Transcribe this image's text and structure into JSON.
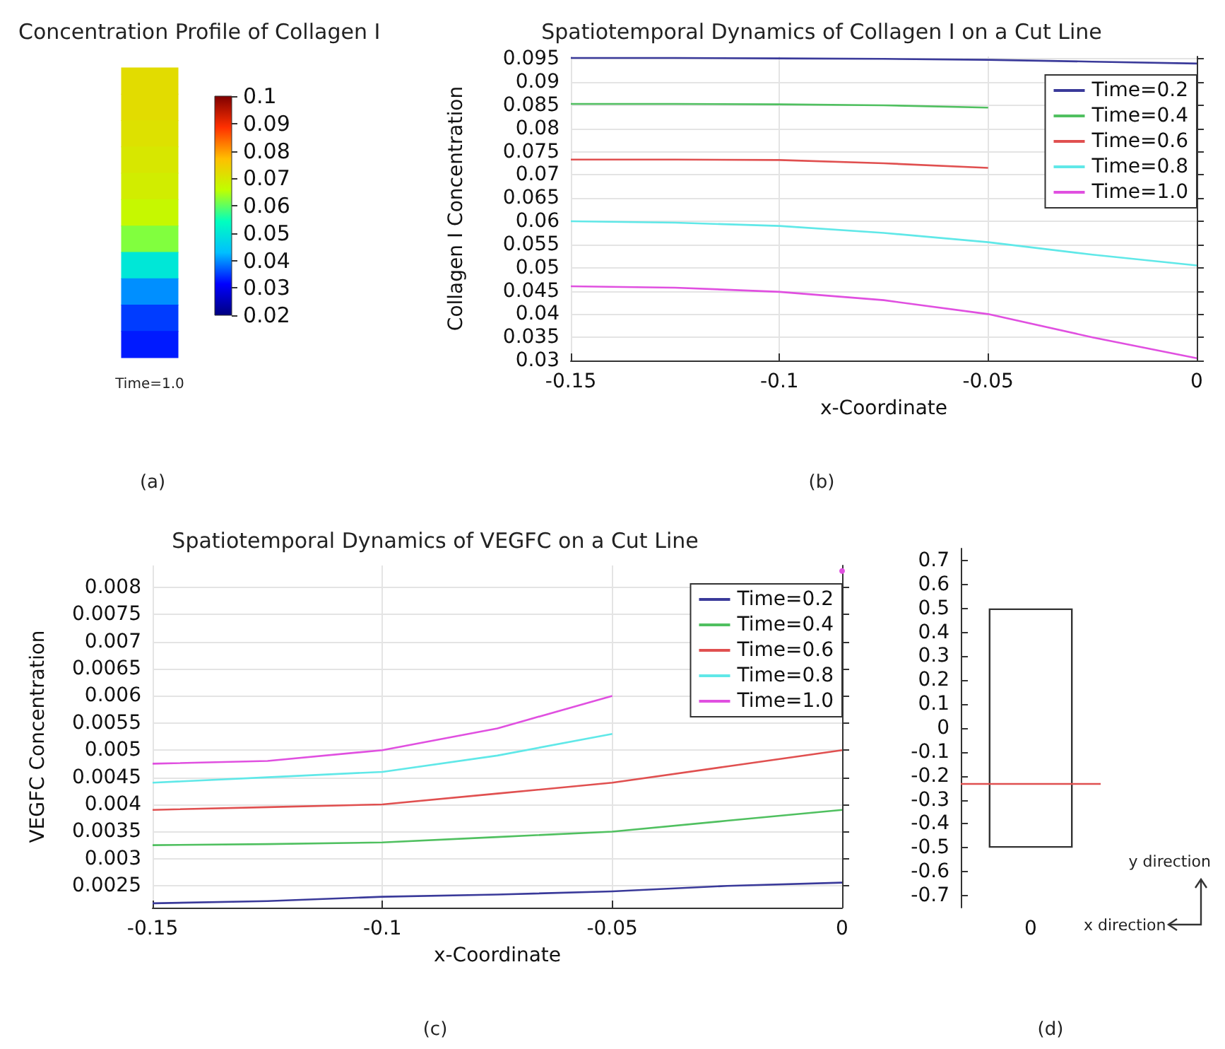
{
  "chart_data": [
    {
      "type": "heatmap",
      "title": "Concentration Profile of Collagen I",
      "xlabel": "Time=1.0",
      "categories": [
        null
      ],
      "y_categories": [
        null,
        null,
        null,
        null,
        null,
        null,
        null,
        null,
        null,
        null,
        null
      ],
      "cells": [
        [
          0.072
        ],
        [
          0.072
        ],
        [
          0.071
        ],
        [
          0.07
        ],
        [
          0.069
        ],
        [
          0.067
        ],
        [
          0.062
        ],
        [
          0.05
        ],
        [
          0.04
        ],
        [
          0.035
        ],
        [
          0.033
        ]
      ],
      "clim": [
        0.02,
        0.1
      ],
      "cticks": [
        0.02,
        0.03,
        0.04,
        0.05,
        0.06,
        0.07,
        0.08,
        0.09,
        0.1
      ],
      "annotations": [
        "(a)"
      ]
    },
    {
      "type": "line",
      "title": "Spatiotemporal Dynamics of Collagen I on a Cut Line",
      "xlabel": "x-Coordinate",
      "ylabel": "Collagen I Concentration",
      "x": [
        -0.15,
        -0.125,
        -0.1,
        -0.075,
        -0.05,
        -0.025,
        0
      ],
      "series": [
        {
          "name": "Time=0.2",
          "color": "#3a3a9a",
          "values": [
            0.0952,
            0.0952,
            0.0951,
            0.095,
            0.0948,
            0.0944,
            0.094
          ]
        },
        {
          "name": "Time=0.4",
          "color": "#50c060",
          "values": [
            0.0853,
            0.0853,
            0.0852,
            0.085,
            0.0845,
            null,
            null
          ]
        },
        {
          "name": "Time=0.6",
          "color": "#e05050",
          "values": [
            0.0733,
            0.0733,
            0.0732,
            0.0725,
            0.0715,
            null,
            null
          ]
        },
        {
          "name": "Time=0.8",
          "color": "#60e8e8",
          "values": [
            0.06,
            0.0597,
            0.059,
            0.0575,
            0.0555,
            0.0528,
            0.0505
          ]
        },
        {
          "name": "Time=1.0",
          "color": "#e050e0",
          "values": [
            0.046,
            0.0457,
            0.0448,
            0.043,
            0.04,
            0.035,
            0.0305
          ]
        }
      ],
      "xlim": [
        -0.15,
        0
      ],
      "xticks": [
        -0.15,
        -0.1,
        -0.05,
        0
      ],
      "ylim": [
        0.03,
        0.0955
      ],
      "yticks": [
        0.03,
        0.035,
        0.04,
        0.045,
        0.05,
        0.055,
        0.06,
        0.065,
        0.07,
        0.075,
        0.08,
        0.085,
        0.09,
        0.095
      ],
      "grid": true,
      "legend": "top right",
      "marker": "none",
      "line_style": "solid",
      "annotations": [
        "(b)"
      ]
    },
    {
      "type": "line",
      "title": "Spatiotemporal Dynamics of VEGFC on a Cut Line",
      "xlabel": "x-Coordinate",
      "ylabel": "VEGFC Concentration",
      "x": [
        -0.15,
        -0.125,
        -0.1,
        -0.075,
        -0.05,
        -0.025,
        0
      ],
      "series": [
        {
          "name": "Time=0.2",
          "color": "#3a3a9a",
          "values": [
            0.00218,
            0.00222,
            0.0023,
            0.00234,
            0.0024,
            0.0025,
            0.00256
          ]
        },
        {
          "name": "Time=0.4",
          "color": "#50c060",
          "values": [
            0.00325,
            0.00327,
            0.0033,
            0.0034,
            0.0035,
            0.0037,
            0.0039
          ]
        },
        {
          "name": "Time=0.6",
          "color": "#e05050",
          "values": [
            0.0039,
            0.00395,
            0.004,
            0.0042,
            0.0044,
            0.0047,
            0.005
          ]
        },
        {
          "name": "Time=0.8",
          "color": "#60e8e8",
          "values": [
            0.0044,
            0.0045,
            0.0046,
            0.0049,
            0.0053,
            null,
            null
          ]
        },
        {
          "name": "Time=1.0",
          "color": "#e050e0",
          "values": [
            0.00475,
            0.0048,
            0.005,
            0.0054,
            0.006,
            null,
            0.0083
          ]
        }
      ],
      "xlim": [
        -0.15,
        0
      ],
      "xticks": [
        -0.15,
        -0.1,
        -0.05,
        0
      ],
      "ylim": [
        0.0021,
        0.0084
      ],
      "yticks": [
        0.0025,
        0.003,
        0.0035,
        0.004,
        0.0045,
        0.005,
        0.0055,
        0.006,
        0.0065,
        0.007,
        0.0075,
        0.008
      ],
      "grid": true,
      "legend": "top right",
      "marker": "none",
      "line_style": "solid",
      "annotations": [
        "(c)"
      ]
    },
    {
      "type": "bar",
      "categories": [
        "0"
      ],
      "base": [
        -0.5
      ],
      "values": [
        1.0
      ],
      "color": "#ffffff",
      "ref_lines": [
        {
          "axis": "y",
          "value": -0.23,
          "color": "#e05050"
        }
      ],
      "ylim": [
        -0.75,
        0.75
      ],
      "yticks": [
        -0.7,
        -0.6,
        -0.5,
        -0.4,
        -0.3,
        -0.2,
        -0.1,
        0,
        0.1,
        0.2,
        0.3,
        0.4,
        0.5,
        0.6,
        0.7
      ],
      "annotations": [
        "y direction",
        "x direction",
        "(d)"
      ]
    }
  ]
}
